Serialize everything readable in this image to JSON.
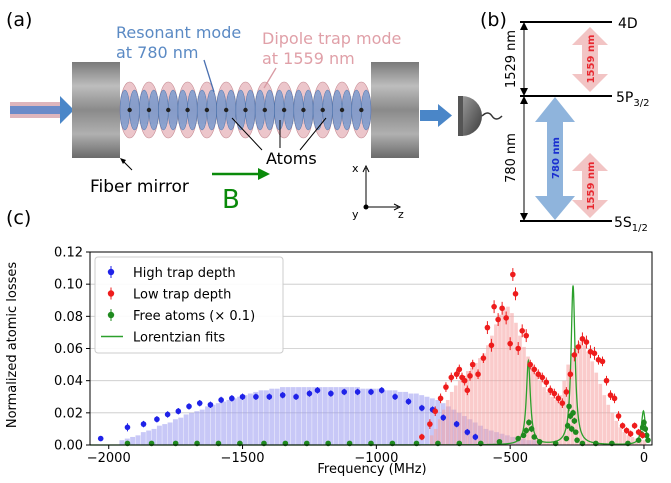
{
  "panel_a": {
    "label": "(a)",
    "resonant_mode_label": "Resonant mode",
    "resonant_mode_wavelength": "at 780 nm",
    "dipole_mode_label": "Dipole trap mode",
    "dipole_mode_wavelength": "at 1559 nm",
    "atoms_label": "Atoms",
    "fiber_mirror_label": "Fiber mirror",
    "b_field_label": "B",
    "axis_x": "x",
    "axis_y": "y",
    "axis_z": "z",
    "colors": {
      "resonant": "#5b8ac4",
      "dipole": "#e0a0a8",
      "b_field": "#0a8a0a",
      "arrow": "#4a86c8"
    }
  },
  "panel_b": {
    "label": "(b)",
    "level_4d": "4D",
    "level_5p": "5P",
    "level_5p_sub": "3/2",
    "level_5s": "5S",
    "level_5s_sub": "1/2",
    "gap_upper": "1529 nm",
    "gap_lower": "780 nm",
    "arrow_780": "780 nm",
    "arrow_1559_upper": "1559 nm",
    "arrow_1559_lower": "1559 nm",
    "colors": {
      "blue_arrow": "#8fb4dc",
      "red_arrow": "#f2c4c4",
      "text_red": "#e8272f",
      "text_blue": "#1a2fd0"
    }
  },
  "panel_c": {
    "label": "(c)"
  },
  "chart_data": {
    "type": "scatter",
    "xlabel": "Frequency (MHz)",
    "ylabel": "Normalized atomic losses",
    "xlim": [
      -2070,
      30
    ],
    "ylim": [
      0,
      0.12
    ],
    "xticks": [
      -2000,
      -1500,
      -1000,
      -500,
      0
    ],
    "yticks": [
      0.0,
      0.02,
      0.04,
      0.06,
      0.08,
      0.1,
      0.12
    ],
    "ytick_labels": [
      "0.00",
      "0.02",
      "0.04",
      "0.06",
      "0.08",
      "0.10",
      "0.12"
    ],
    "grid": "horizontal",
    "legend_position": "top-left",
    "legend": [
      "High trap depth",
      "Low trap depth",
      "Free atoms (× 0.1)",
      "Lorentzian fits"
    ],
    "series": [
      {
        "name": "High trap depth",
        "color": "#1f22e8",
        "x": [
          -2030,
          -1930,
          -1870,
          -1820,
          -1780,
          -1740,
          -1700,
          -1660,
          -1620,
          -1580,
          -1540,
          -1500,
          -1450,
          -1400,
          -1350,
          -1300,
          -1250,
          -1220,
          -1170,
          -1120,
          -1070,
          -1020,
          -980,
          -930,
          -880,
          -830,
          -790,
          -750,
          -700,
          -660,
          -630
        ],
        "y": [
          0.004,
          0.011,
          0.013,
          0.016,
          0.019,
          0.021,
          0.024,
          0.026,
          0.025,
          0.028,
          0.029,
          0.03,
          0.03,
          0.03,
          0.031,
          0.03,
          0.032,
          0.034,
          0.032,
          0.033,
          0.033,
          0.033,
          0.034,
          0.03,
          0.027,
          0.023,
          0.022,
          0.017,
          0.013,
          0.008,
          0.005
        ],
        "err": [
          0.0015,
          0.0025,
          0.002,
          0.002,
          0.002,
          0.002,
          0.002,
          0.002,
          0.002,
          0.002,
          0.002,
          0.002,
          0.002,
          0.002,
          0.002,
          0.002,
          0.002,
          0.002,
          0.002,
          0.002,
          0.002,
          0.002,
          0.002,
          0.002,
          0.002,
          0.002,
          0.002,
          0.002,
          0.002,
          0.002,
          0.002
        ]
      },
      {
        "name": "Low trap depth",
        "color": "#ee1c1c",
        "x": [
          -830,
          -800,
          -780,
          -760,
          -740,
          -720,
          -700,
          -690,
          -680,
          -670,
          -660,
          -650,
          -640,
          -620,
          -600,
          -585,
          -570,
          -560,
          -545,
          -530,
          -515,
          -500,
          -490,
          -480,
          -470,
          -455,
          -440,
          -425,
          -410,
          -395,
          -380,
          -365,
          -350,
          -335,
          -320,
          -305,
          -290,
          -275,
          -260,
          -245,
          -230,
          -215,
          -200,
          -185,
          -170,
          -155,
          -140,
          -125,
          -110,
          -95,
          -80,
          -65,
          -50,
          -35,
          -20,
          -5
        ],
        "y": [
          0.005,
          0.013,
          0.021,
          0.029,
          0.036,
          0.042,
          0.044,
          0.047,
          0.042,
          0.04,
          0.034,
          0.043,
          0.05,
          0.044,
          0.054,
          0.073,
          0.062,
          0.086,
          0.078,
          0.085,
          0.079,
          0.063,
          0.106,
          0.094,
          0.06,
          0.071,
          0.068,
          0.05,
          0.047,
          0.044,
          0.042,
          0.039,
          0.034,
          0.032,
          0.029,
          0.026,
          0.033,
          0.044,
          0.056,
          0.061,
          0.066,
          0.064,
          0.058,
          0.057,
          0.053,
          0.052,
          0.04,
          0.031,
          0.029,
          0.018,
          0.012,
          0.009,
          0.007,
          0.012,
          0.008,
          0.006
        ],
        "err": [
          0.002,
          0.003,
          0.003,
          0.003,
          0.003,
          0.003,
          0.003,
          0.003,
          0.003,
          0.003,
          0.003,
          0.003,
          0.003,
          0.003,
          0.003,
          0.004,
          0.004,
          0.004,
          0.004,
          0.004,
          0.004,
          0.004,
          0.004,
          0.004,
          0.004,
          0.004,
          0.004,
          0.003,
          0.003,
          0.003,
          0.003,
          0.003,
          0.003,
          0.003,
          0.003,
          0.003,
          0.003,
          0.003,
          0.004,
          0.004,
          0.004,
          0.004,
          0.004,
          0.004,
          0.003,
          0.003,
          0.003,
          0.003,
          0.003,
          0.003,
          0.002,
          0.002,
          0.002,
          0.002,
          0.002,
          0.002
        ]
      },
      {
        "name": "Free atoms (× 0.1)",
        "color": "#1f8a1f",
        "x": [
          -1930,
          -1840,
          -1750,
          -1670,
          -1590,
          -1510,
          -1420,
          -1340,
          -1260,
          -1180,
          -1100,
          -1020,
          -940,
          -850,
          -770,
          -690,
          -610,
          -540,
          -470,
          -450,
          -440,
          -430,
          -420,
          -410,
          -390,
          -330,
          -290,
          -285,
          -280,
          -275,
          -270,
          -265,
          -260,
          -255,
          -250,
          -230,
          -180,
          -120,
          -60,
          -20,
          -10,
          -5,
          0,
          5,
          10,
          15
        ],
        "y": [
          0.001,
          0.001,
          0.001,
          0.001,
          0.001,
          0.001,
          0.001,
          0.001,
          0.001,
          0.001,
          0.001,
          0.001,
          0.001,
          0.001,
          0.001,
          0.001,
          0.001,
          0.002,
          0.004,
          0.006,
          0.009,
          0.014,
          0.01,
          0.005,
          0.002,
          0.001,
          0.004,
          0.012,
          0.024,
          0.018,
          0.01,
          0.02,
          0.015,
          0.008,
          0.003,
          0.001,
          0.001,
          0.001,
          0.001,
          0.003,
          0.007,
          0.011,
          0.014,
          0.01,
          0.006,
          0.003
        ],
        "err": [
          0.0008,
          0.0008,
          0.0008,
          0.0008,
          0.0008,
          0.0008,
          0.0008,
          0.0008,
          0.0008,
          0.0008,
          0.0008,
          0.0008,
          0.0008,
          0.0008,
          0.0008,
          0.0008,
          0.0008,
          0.001,
          0.001,
          0.001,
          0.002,
          0.002,
          0.002,
          0.001,
          0.001,
          0.001,
          0.001,
          0.002,
          0.003,
          0.002,
          0.002,
          0.002,
          0.002,
          0.001,
          0.001,
          0.001,
          0.001,
          0.001,
          0.001,
          0.001,
          0.001,
          0.002,
          0.002,
          0.002,
          0.001,
          0.001
        ]
      }
    ],
    "fits": [
      {
        "name": "Lorentzian fits",
        "color": "#2ca02c",
        "center": -432,
        "width": 9,
        "amp": 0.052
      },
      {
        "name": "Lorentzian fits",
        "color": "#2ca02c",
        "center": -265,
        "width": 9,
        "amp": 0.099
      },
      {
        "name": "Lorentzian fits",
        "color": "#2ca02c",
        "center": -2,
        "width": 9,
        "amp": 0.021
      }
    ],
    "histograms": [
      {
        "name": "High trap depth simulation",
        "color": "#9b9bf0",
        "bin_start": -1960,
        "bin_width": 20,
        "values": [
          0.003,
          0.004,
          0.005,
          0.006,
          0.008,
          0.009,
          0.01,
          0.012,
          0.013,
          0.014,
          0.016,
          0.017,
          0.019,
          0.02,
          0.021,
          0.022,
          0.024,
          0.025,
          0.026,
          0.027,
          0.028,
          0.029,
          0.03,
          0.031,
          0.032,
          0.033,
          0.034,
          0.034,
          0.035,
          0.035,
          0.036,
          0.036,
          0.036,
          0.036,
          0.036,
          0.036,
          0.036,
          0.036,
          0.036,
          0.036,
          0.036,
          0.036,
          0.036,
          0.036,
          0.036,
          0.035,
          0.035,
          0.035,
          0.035,
          0.034,
          0.034,
          0.034,
          0.033,
          0.033,
          0.032,
          0.032,
          0.031,
          0.03,
          0.029,
          0.028,
          0.026,
          0.024,
          0.022,
          0.02,
          0.018,
          0.016,
          0.014,
          0.012,
          0.01,
          0.009,
          0.008,
          0.007,
          0.006,
          0.005,
          0.004,
          0.004,
          0.003,
          0.003
        ]
      },
      {
        "name": "Low trap depth simulation",
        "color": "#f5a0a0",
        "bin_start": -800,
        "bin_width": 15,
        "values": [
          0.006,
          0.01,
          0.016,
          0.022,
          0.028,
          0.033,
          0.037,
          0.04,
          0.043,
          0.046,
          0.048,
          0.051,
          0.054,
          0.057,
          0.062,
          0.068,
          0.075,
          0.081,
          0.085,
          0.086,
          0.082,
          0.076,
          0.068,
          0.061,
          0.055,
          0.049,
          0.044,
          0.04,
          0.036,
          0.033,
          0.03,
          0.028,
          0.031,
          0.04,
          0.05,
          0.057,
          0.062,
          0.064,
          0.062,
          0.058,
          0.052,
          0.045,
          0.038,
          0.031,
          0.025,
          0.02,
          0.015,
          0.011,
          0.008,
          0.006,
          0.005,
          0.004,
          0.003,
          0.003
        ]
      }
    ]
  }
}
